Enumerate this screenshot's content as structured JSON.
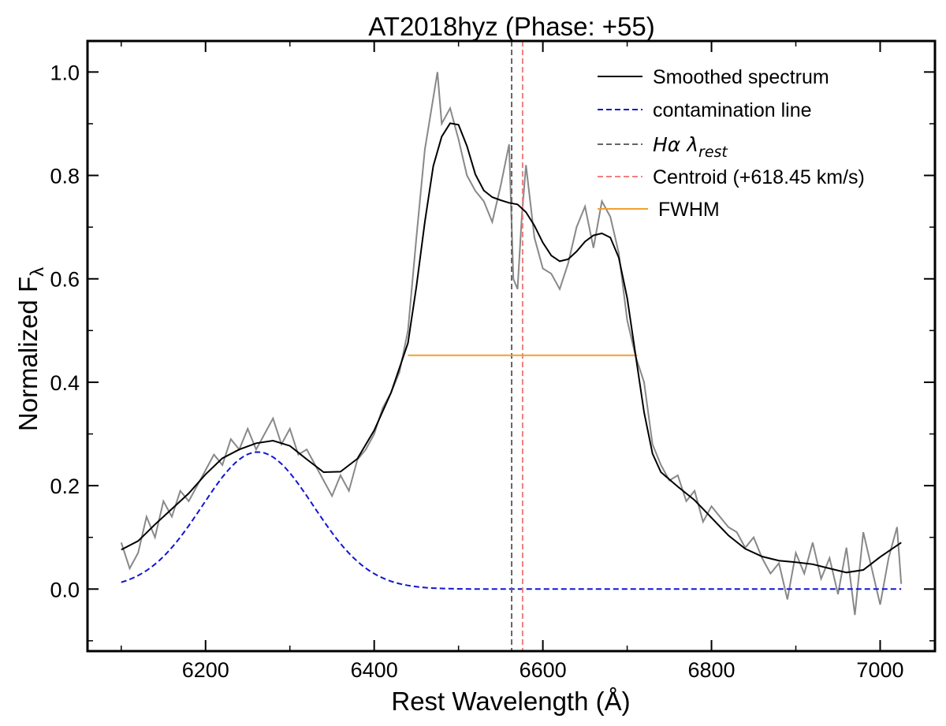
{
  "chart_data": {
    "type": "line",
    "title": "AT2018hyz (Phase: +55)",
    "xlabel": "Rest Wavelength (Å)",
    "ylabel_main": "Normalized F",
    "ylabel_sub": "λ",
    "xlim": [
      6060,
      7065
    ],
    "ylim": [
      -0.12,
      1.06
    ],
    "xticks": [
      6200,
      6400,
      6600,
      6800,
      7000
    ],
    "xtick_labels": [
      "6200",
      "6400",
      "6600",
      "6800",
      "7000"
    ],
    "yticks": [
      0.0,
      0.2,
      0.4,
      0.6,
      0.8,
      1.0
    ],
    "ytick_labels": [
      "0.0",
      "0.2",
      "0.4",
      "0.6",
      "0.8",
      "1.0"
    ],
    "grid": false,
    "legend_position": "top-right",
    "legend": [
      {
        "label": "Smoothed spectrum",
        "color": "#000000",
        "dash": "solid"
      },
      {
        "label": "contamination line",
        "color": "#1414d2",
        "dash": "dashed"
      },
      {
        "label_main": "Hα λ",
        "label_sub": "rest",
        "color": "#666666",
        "dash": "dashed"
      },
      {
        "label": "Centroid (+618.45 km/s)",
        "color": "#f08080",
        "dash": "dashed"
      },
      {
        "label": "FWHM",
        "color": "#f0a030",
        "dash": "solid"
      }
    ],
    "raw_spectrum": {
      "color": "#888888",
      "x": [
        6100,
        6110,
        6120,
        6130,
        6140,
        6150,
        6160,
        6170,
        6180,
        6190,
        6200,
        6210,
        6220,
        6230,
        6240,
        6250,
        6260,
        6270,
        6280,
        6290,
        6300,
        6310,
        6320,
        6330,
        6340,
        6350,
        6360,
        6370,
        6380,
        6390,
        6400,
        6410,
        6420,
        6430,
        6440,
        6450,
        6460,
        6470,
        6475,
        6480,
        6490,
        6500,
        6510,
        6520,
        6530,
        6540,
        6550,
        6560,
        6565,
        6570,
        6575,
        6580,
        6590,
        6600,
        6610,
        6620,
        6630,
        6640,
        6650,
        6660,
        6670,
        6680,
        6690,
        6700,
        6710,
        6720,
        6730,
        6740,
        6750,
        6760,
        6770,
        6780,
        6790,
        6800,
        6810,
        6820,
        6830,
        6840,
        6850,
        6860,
        6870,
        6880,
        6890,
        6900,
        6910,
        6920,
        6930,
        6940,
        6950,
        6960,
        6970,
        6980,
        6990,
        7000,
        7010,
        7020,
        7025
      ],
      "y": [
        0.09,
        0.04,
        0.07,
        0.14,
        0.1,
        0.17,
        0.14,
        0.19,
        0.17,
        0.2,
        0.23,
        0.26,
        0.24,
        0.29,
        0.27,
        0.31,
        0.27,
        0.3,
        0.33,
        0.28,
        0.31,
        0.26,
        0.27,
        0.24,
        0.21,
        0.18,
        0.22,
        0.19,
        0.25,
        0.27,
        0.3,
        0.35,
        0.38,
        0.42,
        0.5,
        0.68,
        0.85,
        0.95,
        1.0,
        0.9,
        0.93,
        0.87,
        0.8,
        0.77,
        0.75,
        0.71,
        0.78,
        0.86,
        0.6,
        0.58,
        0.72,
        0.82,
        0.68,
        0.62,
        0.61,
        0.58,
        0.63,
        0.7,
        0.74,
        0.66,
        0.75,
        0.72,
        0.65,
        0.52,
        0.45,
        0.4,
        0.28,
        0.24,
        0.21,
        0.22,
        0.17,
        0.19,
        0.13,
        0.16,
        0.14,
        0.12,
        0.11,
        0.08,
        0.1,
        0.06,
        0.03,
        0.05,
        -0.02,
        0.07,
        0.03,
        0.09,
        0.02,
        0.06,
        -0.01,
        0.08,
        -0.05,
        0.11,
        0.04,
        -0.03,
        0.06,
        0.12,
        0.01
      ]
    },
    "smoothed_spectrum": {
      "color": "#000000",
      "x": [
        6100,
        6120,
        6140,
        6160,
        6180,
        6200,
        6220,
        6240,
        6260,
        6280,
        6300,
        6320,
        6340,
        6360,
        6380,
        6400,
        6420,
        6440,
        6450,
        6460,
        6470,
        6480,
        6490,
        6500,
        6510,
        6520,
        6530,
        6540,
        6550,
        6560,
        6570,
        6580,
        6590,
        6600,
        6610,
        6620,
        6630,
        6640,
        6650,
        6660,
        6670,
        6680,
        6690,
        6700,
        6710,
        6720,
        6730,
        6740,
        6760,
        6780,
        6800,
        6820,
        6840,
        6860,
        6880,
        6900,
        6920,
        6940,
        6960,
        6980,
        7000,
        7025
      ],
      "y": [
        0.076,
        0.093,
        0.125,
        0.155,
        0.185,
        0.222,
        0.253,
        0.27,
        0.282,
        0.287,
        0.277,
        0.251,
        0.226,
        0.227,
        0.252,
        0.307,
        0.38,
        0.476,
        0.585,
        0.71,
        0.818,
        0.875,
        0.901,
        0.898,
        0.857,
        0.802,
        0.771,
        0.758,
        0.752,
        0.747,
        0.744,
        0.729,
        0.703,
        0.67,
        0.645,
        0.634,
        0.638,
        0.653,
        0.672,
        0.684,
        0.688,
        0.68,
        0.641,
        0.563,
        0.452,
        0.342,
        0.262,
        0.226,
        0.198,
        0.172,
        0.138,
        0.104,
        0.078,
        0.063,
        0.055,
        0.052,
        0.048,
        0.04,
        0.032,
        0.037,
        0.062,
        0.09
      ]
    },
    "contamination_line": {
      "color": "#1414d2",
      "amplitude": 0.265,
      "center": 6262,
      "sigma": 66,
      "x_range": [
        6100,
        7025
      ]
    },
    "h_alpha_rest": 6563,
    "centroid": 6576,
    "fwhm": {
      "x_start": 6440,
      "x_end": 6712,
      "y": 0.452
    }
  }
}
